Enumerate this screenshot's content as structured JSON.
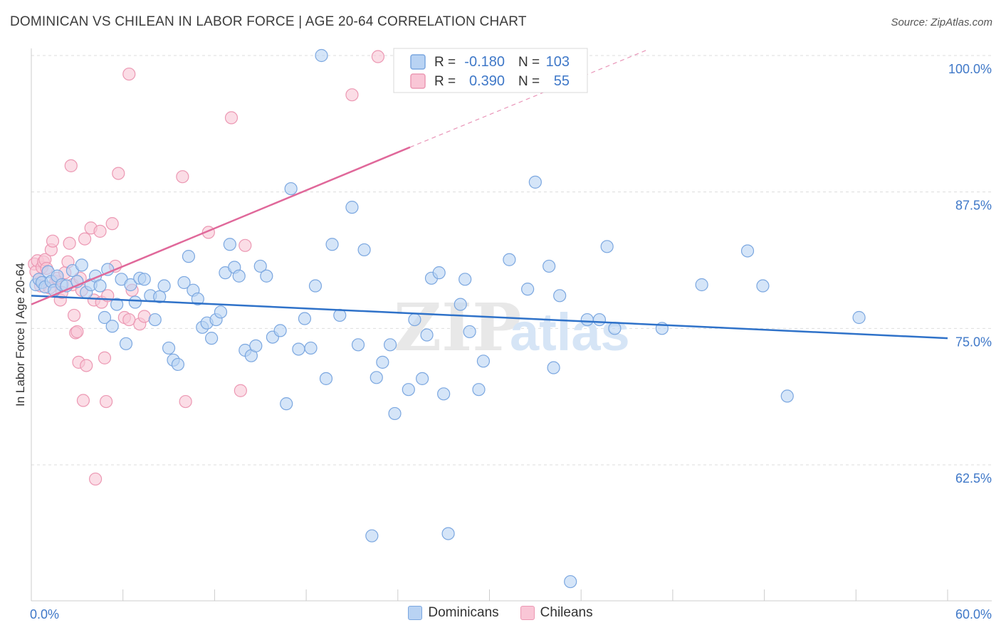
{
  "title": "DOMINICAN VS CHILEAN IN LABOR FORCE | AGE 20-64 CORRELATION CHART",
  "source": "Source: ZipAtlas.com",
  "watermark": "ZIPatlas",
  "colors": {
    "blue_fill": "#b9d3f3",
    "blue_stroke": "#7ba7e0",
    "blue_line": "#2f72c9",
    "pink_fill": "#f9c6d6",
    "pink_stroke": "#ec98b3",
    "pink_line": "#e0689a",
    "axis_label": "#3f78c8",
    "grid": "#dddddd"
  },
  "legend_top": {
    "rows": [
      {
        "r_label": "R =",
        "r_value": "-0.180",
        "n_label": "N =",
        "n_value": "103"
      },
      {
        "r_label": "R =",
        "r_value": "0.390",
        "n_label": "N =",
        "n_value": "55"
      }
    ]
  },
  "legend_bottom": {
    "dominicans": "Dominicans",
    "chileans": "Chileans"
  },
  "chart_data": {
    "type": "scatter",
    "ylabel": "In Labor Force | Age 20-64",
    "xlim": [
      0,
      60
    ],
    "ylim": [
      53,
      101.5
    ],
    "x_tick_labels": {
      "left": "0.0%",
      "right": "60.0%"
    },
    "y_ticks": [
      {
        "value": 100,
        "label": "100.0%"
      },
      {
        "value": 87.5,
        "label": "87.5%"
      },
      {
        "value": 75,
        "label": "75.0%"
      },
      {
        "value": 62.5,
        "label": "62.5%"
      }
    ],
    "grid": true,
    "series": [
      {
        "name": "Dominicans",
        "color": "blue",
        "trend": {
          "x0": 0,
          "y0": 78.0,
          "x1": 60,
          "y1": 74.1
        },
        "points": [
          [
            0.3,
            79.0
          ],
          [
            0.5,
            79.5
          ],
          [
            0.7,
            79.2
          ],
          [
            0.9,
            78.8
          ],
          [
            1.1,
            80.2
          ],
          [
            1.3,
            79.3
          ],
          [
            1.5,
            78.5
          ],
          [
            1.7,
            79.8
          ],
          [
            2.0,
            79.0
          ],
          [
            2.3,
            78.9
          ],
          [
            2.7,
            80.3
          ],
          [
            3.0,
            79.3
          ],
          [
            3.3,
            80.8
          ],
          [
            3.6,
            78.3
          ],
          [
            3.9,
            79.0
          ],
          [
            4.2,
            79.8
          ],
          [
            4.5,
            78.9
          ],
          [
            4.8,
            76.0
          ],
          [
            5.0,
            80.4
          ],
          [
            5.3,
            75.2
          ],
          [
            5.6,
            77.2
          ],
          [
            5.9,
            79.5
          ],
          [
            6.2,
            73.6
          ],
          [
            6.5,
            79.0
          ],
          [
            6.8,
            77.4
          ],
          [
            7.1,
            79.6
          ],
          [
            7.4,
            79.5
          ],
          [
            7.8,
            78.0
          ],
          [
            8.1,
            75.8
          ],
          [
            8.4,
            77.9
          ],
          [
            8.7,
            78.9
          ],
          [
            9.0,
            73.2
          ],
          [
            9.3,
            72.1
          ],
          [
            9.6,
            71.7
          ],
          [
            10.0,
            79.2
          ],
          [
            10.3,
            81.6
          ],
          [
            10.6,
            78.5
          ],
          [
            10.9,
            77.7
          ],
          [
            11.2,
            75.1
          ],
          [
            11.5,
            75.5
          ],
          [
            11.8,
            74.1
          ],
          [
            12.1,
            75.8
          ],
          [
            12.4,
            76.5
          ],
          [
            12.7,
            80.1
          ],
          [
            13.0,
            82.7
          ],
          [
            13.3,
            80.6
          ],
          [
            13.6,
            79.8
          ],
          [
            14.0,
            73.0
          ],
          [
            14.4,
            72.5
          ],
          [
            14.7,
            73.4
          ],
          [
            15.0,
            80.7
          ],
          [
            15.4,
            79.8
          ],
          [
            15.8,
            74.2
          ],
          [
            16.3,
            74.8
          ],
          [
            16.7,
            68.1
          ],
          [
            17.0,
            87.8
          ],
          [
            17.5,
            73.1
          ],
          [
            17.9,
            75.9
          ],
          [
            18.3,
            73.2
          ],
          [
            18.6,
            78.9
          ],
          [
            19.0,
            100.0
          ],
          [
            19.3,
            70.4
          ],
          [
            19.7,
            82.7
          ],
          [
            20.2,
            76.2
          ],
          [
            21.0,
            86.1
          ],
          [
            21.4,
            73.5
          ],
          [
            21.8,
            82.2
          ],
          [
            22.3,
            56.0
          ],
          [
            22.6,
            70.5
          ],
          [
            23.0,
            71.9
          ],
          [
            23.5,
            73.5
          ],
          [
            23.8,
            67.2
          ],
          [
            24.7,
            69.4
          ],
          [
            25.1,
            75.8
          ],
          [
            25.6,
            70.4
          ],
          [
            25.9,
            74.4
          ],
          [
            26.2,
            79.6
          ],
          [
            26.7,
            80.1
          ],
          [
            27.0,
            69.0
          ],
          [
            27.3,
            56.2
          ],
          [
            28.1,
            77.2
          ],
          [
            28.4,
            79.5
          ],
          [
            28.7,
            74.7
          ],
          [
            29.3,
            69.4
          ],
          [
            29.6,
            72.0
          ],
          [
            31.3,
            81.3
          ],
          [
            32.5,
            78.6
          ],
          [
            33.0,
            88.4
          ],
          [
            33.9,
            80.7
          ],
          [
            34.2,
            71.4
          ],
          [
            34.6,
            78.0
          ],
          [
            35.3,
            51.8
          ],
          [
            36.4,
            75.8
          ],
          [
            37.2,
            75.8
          ],
          [
            37.7,
            82.5
          ],
          [
            38.2,
            75.0
          ],
          [
            41.3,
            75.0
          ],
          [
            43.9,
            79.0
          ],
          [
            46.9,
            82.1
          ],
          [
            47.9,
            78.9
          ],
          [
            49.5,
            68.8
          ],
          [
            54.2,
            76.0
          ]
        ]
      },
      {
        "name": "Chileans",
        "color": "pink",
        "trend": {
          "x0": 0,
          "y0": 77.2,
          "x1": 24.8,
          "y1": 91.6,
          "dash_to": {
            "x": 40.3,
            "y": 100.5
          }
        },
        "points": [
          [
            0.2,
            80.9
          ],
          [
            0.3,
            80.2
          ],
          [
            0.4,
            81.2
          ],
          [
            0.5,
            79.5
          ],
          [
            0.6,
            78.9
          ],
          [
            0.7,
            80.6
          ],
          [
            0.8,
            81.1
          ],
          [
            0.9,
            81.3
          ],
          [
            1.0,
            80.5
          ],
          [
            1.2,
            78.7
          ],
          [
            1.3,
            82.2
          ],
          [
            1.4,
            83.0
          ],
          [
            1.6,
            79.3
          ],
          [
            1.7,
            79.6
          ],
          [
            1.9,
            77.6
          ],
          [
            2.0,
            78.3
          ],
          [
            2.2,
            80.1
          ],
          [
            2.4,
            81.1
          ],
          [
            2.5,
            82.8
          ],
          [
            2.6,
            89.9
          ],
          [
            2.7,
            79.0
          ],
          [
            2.8,
            76.2
          ],
          [
            2.9,
            74.6
          ],
          [
            3.0,
            74.7
          ],
          [
            3.1,
            71.9
          ],
          [
            3.2,
            79.6
          ],
          [
            3.3,
            78.5
          ],
          [
            3.4,
            68.4
          ],
          [
            3.5,
            83.2
          ],
          [
            3.6,
            71.6
          ],
          [
            3.9,
            84.2
          ],
          [
            4.1,
            77.6
          ],
          [
            4.2,
            61.2
          ],
          [
            4.5,
            83.9
          ],
          [
            4.6,
            77.4
          ],
          [
            4.8,
            72.3
          ],
          [
            4.9,
            68.3
          ],
          [
            5.0,
            78.0
          ],
          [
            5.3,
            84.6
          ],
          [
            5.5,
            80.7
          ],
          [
            5.7,
            89.2
          ],
          [
            6.1,
            76.0
          ],
          [
            6.4,
            98.3
          ],
          [
            6.6,
            78.5
          ],
          [
            7.1,
            75.4
          ],
          [
            7.4,
            76.1
          ],
          [
            9.9,
            88.9
          ],
          [
            10.1,
            68.3
          ],
          [
            11.6,
            83.8
          ],
          [
            13.1,
            94.3
          ],
          [
            13.7,
            69.3
          ],
          [
            14.0,
            82.6
          ],
          [
            21.0,
            96.4
          ],
          [
            22.7,
            99.9
          ],
          [
            6.4,
            75.8
          ]
        ]
      }
    ]
  }
}
